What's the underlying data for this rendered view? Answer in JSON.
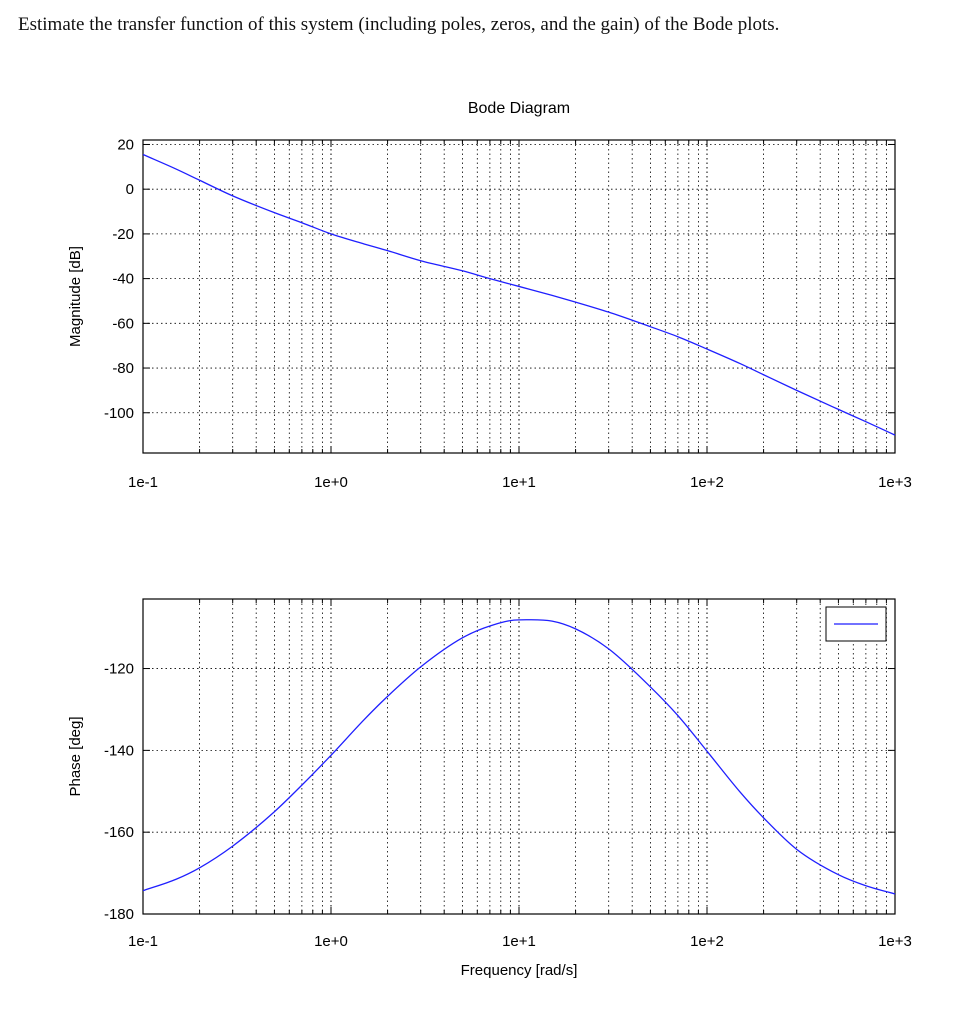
{
  "question": "Estimate the transfer function of this system (including poles, zeros, and the gain) of the Bode plots.",
  "colors": {
    "line": "#1f1fff",
    "grid": "#000000",
    "axis": "#000000"
  },
  "chart_data": [
    {
      "type": "line",
      "title": "Bode Diagram",
      "xlabel": "",
      "ylabel": "Magnitude [dB]",
      "xscale": "log",
      "xlim": [
        0.1,
        1000
      ],
      "ylim": [
        -118,
        22
      ],
      "grid": true,
      "x_tick_labels": [
        "1e-1",
        "1e+0",
        "1e+1",
        "1e+2",
        "1e+3"
      ],
      "y_ticks": [
        20,
        0,
        -20,
        -40,
        -60,
        -80,
        -100
      ],
      "y_tick_labels": [
        "20",
        "0",
        "-20",
        "-40",
        "-60",
        "-80",
        "-100"
      ],
      "series": [
        {
          "x": [
            0.1,
            0.15,
            0.2,
            0.3,
            0.5,
            0.7,
            1,
            1.5,
            2,
            3,
            5,
            7,
            10,
            15,
            20,
            30,
            50,
            70,
            100,
            150,
            200,
            300,
            500,
            700,
            1000
          ],
          "values": [
            15.5,
            9,
            4,
            -3,
            -10.5,
            -15,
            -20,
            -24.5,
            -27.5,
            -32,
            -36.5,
            -40,
            -43.5,
            -47.5,
            -50.5,
            -55,
            -61.5,
            -66,
            -71.5,
            -78,
            -83,
            -90,
            -98.5,
            -104,
            -110
          ]
        }
      ]
    },
    {
      "type": "line",
      "title": "",
      "xlabel": "Frequency [rad/s]",
      "ylabel": "Phase [deg]",
      "xscale": "log",
      "xlim": [
        0.1,
        1000
      ],
      "ylim": [
        -180,
        -103
      ],
      "grid": true,
      "legend": "top-right",
      "x_tick_labels": [
        "1e-1",
        "1e+0",
        "1e+1",
        "1e+2",
        "1e+3"
      ],
      "y_ticks": [
        -120,
        -140,
        -160,
        -180
      ],
      "y_tick_labels": [
        "-120",
        "-140",
        "-160",
        "-180"
      ],
      "series": [
        {
          "x": [
            0.1,
            0.15,
            0.2,
            0.3,
            0.5,
            0.7,
            1,
            1.5,
            2,
            3,
            5,
            7,
            10,
            15,
            20,
            30,
            50,
            70,
            100,
            150,
            200,
            300,
            500,
            700,
            1000
          ],
          "values": [
            -174.3,
            -171.5,
            -168.7,
            -163.4,
            -155,
            -148.5,
            -141.2,
            -132.5,
            -126.8,
            -119.6,
            -112.5,
            -109.6,
            -108.1,
            -108.4,
            -110.3,
            -115.2,
            -124.5,
            -131.5,
            -140.2,
            -150.2,
            -156.5,
            -164.2,
            -170.4,
            -173.1,
            -175.1
          ]
        }
      ]
    }
  ]
}
